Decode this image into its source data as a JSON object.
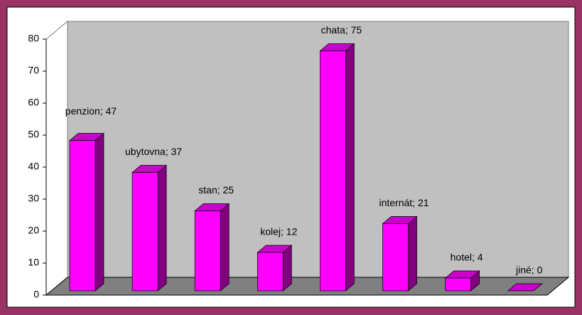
{
  "chart_data": {
    "type": "bar",
    "values": [
      47,
      37,
      25,
      12,
      75,
      21,
      4,
      0
    ],
    "value_labels": [
      "penzion; 47",
      "ubytovna; 37",
      "stan; 25",
      "kolej; 12",
      "chata; 75",
      "internát; 21",
      "hotel; 4",
      "jiné; 0"
    ],
    "color": "#ff00ff",
    "ylim": [
      0,
      80
    ],
    "yticks": [
      0,
      10,
      20,
      30,
      40,
      50,
      60,
      70,
      80
    ],
    "grid": false
  }
}
